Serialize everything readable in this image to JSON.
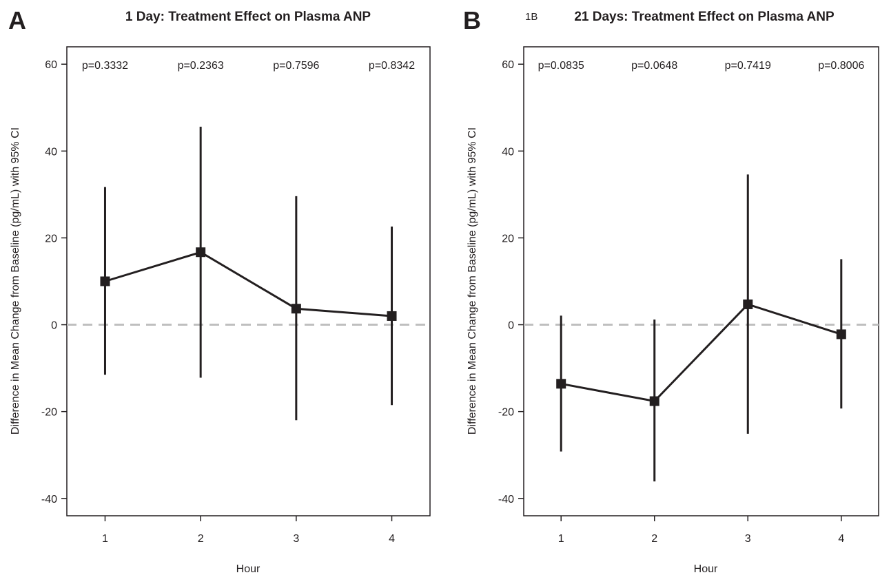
{
  "colors": {
    "ink": "#231f20",
    "reference_line": "#bfbfbf",
    "background": "#ffffff"
  },
  "chart_data": [
    {
      "type": "line",
      "panel_letter": "A",
      "panel_tag": "",
      "title": "1 Day: Treatment Effect on Plasma ANP",
      "xlabel": "Hour",
      "ylabel": "Difference in Mean Change from Baseline (pg/mL) with 95% CI",
      "x": [
        1,
        2,
        3,
        4
      ],
      "x_tick_labels": [
        "1",
        "2",
        "3",
        "4"
      ],
      "xlim": [
        0.6,
        4.4
      ],
      "ylim": [
        -44,
        64
      ],
      "y_ticks": [
        -40,
        -20,
        0,
        20,
        40,
        60
      ],
      "y_tick_labels": [
        "-40",
        "-20",
        "0",
        "20",
        "40",
        "60"
      ],
      "series": [
        {
          "values": [
            10,
            16.7,
            3.7,
            2
          ],
          "ci_low": [
            -11.5,
            -12.2,
            -22,
            -18.5
          ],
          "ci_high": [
            31.7,
            45.6,
            29.6,
            22.6
          ]
        }
      ],
      "p_values": [
        "p=0.3332",
        "p=0.2363",
        "p=0.7596",
        "p=0.8342"
      ],
      "reference_line_y": 0,
      "grid": false
    },
    {
      "type": "line",
      "panel_letter": "B",
      "panel_tag": "1B",
      "title": "21 Days: Treatment Effect on Plasma ANP",
      "xlabel": "Hour",
      "ylabel": "Difference in Mean Change from Baseline (pg/mL) with 95% CI",
      "x": [
        1,
        2,
        3,
        4
      ],
      "x_tick_labels": [
        "1",
        "2",
        "3",
        "4"
      ],
      "xlim": [
        0.6,
        4.4
      ],
      "ylim": [
        -44,
        64
      ],
      "y_ticks": [
        -40,
        -20,
        0,
        20,
        40,
        60
      ],
      "y_tick_labels": [
        "-40",
        "-20",
        "0",
        "20",
        "40",
        "60"
      ],
      "series": [
        {
          "values": [
            -13.6,
            -17.6,
            4.7,
            -2.2
          ],
          "ci_low": [
            -29.2,
            -36.1,
            -25.1,
            -19.3
          ],
          "ci_high": [
            2.1,
            1.2,
            34.6,
            15.1
          ]
        }
      ],
      "p_values": [
        "p=0.0835",
        "p=0.0648",
        "p=0.7419",
        "p=0.8006"
      ],
      "reference_line_y": 0,
      "grid": false
    }
  ]
}
